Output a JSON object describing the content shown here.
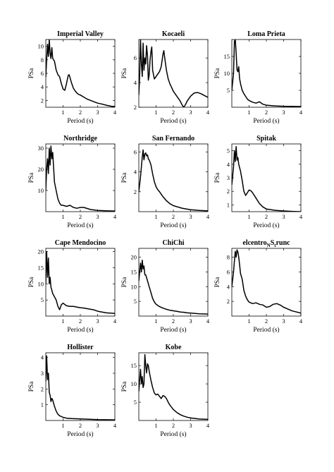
{
  "chart_data": [
    {
      "type": "line",
      "title": "Imperial Valley",
      "xlabel": "Period (s)",
      "ylabel": "PSa",
      "xlim": [
        0,
        4
      ],
      "ylim": [
        1,
        11
      ],
      "xticks": [
        1,
        2,
        3,
        4
      ],
      "yticks": [
        2,
        4,
        6,
        8,
        10
      ],
      "series": [
        {
          "x": [
            0,
            0.05,
            0.1,
            0.15,
            0.2,
            0.25,
            0.3,
            0.35,
            0.4,
            0.5,
            0.6,
            0.7,
            0.8,
            0.9,
            1.0,
            1.1,
            1.2,
            1.3,
            1.35,
            1.4,
            1.5,
            1.6,
            1.7,
            1.8,
            1.9,
            2.0,
            2.2,
            2.4,
            2.6,
            2.8,
            3.0,
            3.2,
            3.5,
            3.8,
            4.0
          ],
          "y": [
            5.5,
            8,
            10.3,
            8.5,
            11,
            9,
            8.2,
            9.8,
            8.2,
            7.8,
            6.5,
            5.8,
            5.5,
            4.5,
            3.7,
            3.5,
            4.5,
            5.7,
            5.8,
            5.4,
            4.5,
            3.8,
            3.4,
            3.1,
            2.9,
            2.8,
            2.5,
            2.2,
            2.0,
            1.8,
            1.6,
            1.5,
            1.3,
            1.15,
            1.1
          ]
        }
      ]
    },
    {
      "type": "line",
      "title": "Kocaeli",
      "xlabel": "Period (s)",
      "ylabel": "PSa",
      "xlim": [
        0,
        4
      ],
      "ylim": [
        2,
        7.5
      ],
      "xticks": [
        1,
        2,
        3,
        4
      ],
      "yticks": [
        2,
        4,
        6
      ],
      "series": [
        {
          "x": [
            0,
            0.05,
            0.1,
            0.15,
            0.2,
            0.25,
            0.3,
            0.35,
            0.4,
            0.45,
            0.5,
            0.55,
            0.6,
            0.65,
            0.7,
            0.75,
            0.8,
            0.9,
            1.0,
            1.1,
            1.2,
            1.3,
            1.4,
            1.45,
            1.5,
            1.6,
            1.7,
            1.8,
            1.9,
            2.0,
            2.1,
            2.2,
            2.3,
            2.4,
            2.5,
            2.6,
            2.7,
            2.8,
            3.0,
            3.2,
            3.4,
            3.6,
            3.8,
            4.0
          ],
          "y": [
            3,
            4.5,
            7.5,
            5.5,
            4.5,
            7.2,
            5.0,
            6.0,
            5.5,
            7.0,
            6.2,
            4.2,
            4.6,
            5.8,
            6.5,
            6.9,
            5.0,
            4.3,
            4.5,
            4.7,
            4.9,
            5.3,
            6.3,
            6.6,
            6.0,
            5.0,
            4.3,
            3.9,
            3.6,
            3.3,
            3.1,
            2.9,
            2.7,
            2.5,
            2.2,
            2.0,
            2.2,
            2.5,
            2.9,
            3.15,
            3.2,
            3.1,
            2.95,
            2.8
          ]
        }
      ]
    },
    {
      "type": "line",
      "title": "Loma Prieta",
      "xlabel": "Period (s)",
      "ylabel": "PSa",
      "xlim": [
        0,
        4
      ],
      "ylim": [
        0,
        20
      ],
      "xticks": [
        1,
        2,
        3,
        4
      ],
      "yticks": [
        5,
        10,
        15
      ],
      "series": [
        {
          "x": [
            0,
            0.1,
            0.15,
            0.2,
            0.25,
            0.3,
            0.35,
            0.4,
            0.45,
            0.5,
            0.6,
            0.7,
            0.8,
            0.9,
            1.0,
            1.2,
            1.4,
            1.6,
            1.8,
            2.0,
            2.5,
            3.0,
            3.5,
            4.0
          ],
          "y": [
            5,
            10,
            19.5,
            20,
            16,
            11,
            10.5,
            12,
            8.5,
            7,
            5,
            4,
            3.2,
            2.4,
            2.0,
            1.5,
            1.2,
            1.6,
            0.9,
            0.6,
            0.4,
            0.3,
            0.25,
            0.2
          ]
        }
      ]
    },
    {
      "type": "line",
      "title": "Northridge",
      "xlabel": "Period (s)",
      "ylabel": "PSa",
      "xlim": [
        0,
        4
      ],
      "ylim": [
        0,
        32
      ],
      "xticks": [
        1,
        2,
        3,
        4
      ],
      "yticks": [
        10,
        20,
        30
      ],
      "series": [
        {
          "x": [
            0,
            0.05,
            0.1,
            0.15,
            0.2,
            0.25,
            0.3,
            0.35,
            0.4,
            0.5,
            0.6,
            0.7,
            0.8,
            0.9,
            1.0,
            1.2,
            1.4,
            1.6,
            1.8,
            2.0,
            2.2,
            2.4,
            2.6,
            2.8,
            3.0,
            3.5,
            4.0
          ],
          "y": [
            10,
            20,
            25,
            18,
            30,
            22,
            31,
            25,
            28,
            14,
            10,
            6,
            4,
            3,
            3,
            2.5,
            3,
            2,
            1.6,
            2,
            2,
            1.5,
            1,
            0.8,
            0.6,
            0.4,
            0.3
          ]
        }
      ]
    },
    {
      "type": "line",
      "title": "San Fernando",
      "xlabel": "Period (s)",
      "ylabel": "PSa",
      "xlim": [
        0,
        4
      ],
      "ylim": [
        0,
        6.8
      ],
      "xticks": [
        1,
        2,
        3,
        4
      ],
      "yticks": [
        2,
        4,
        6
      ],
      "series": [
        {
          "x": [
            0,
            0.1,
            0.2,
            0.25,
            0.3,
            0.35,
            0.4,
            0.45,
            0.5,
            0.55,
            0.6,
            0.7,
            0.8,
            0.9,
            1.0,
            1.1,
            1.2,
            1.4,
            1.6,
            1.8,
            2.0,
            2.5,
            3.0,
            3.5,
            4.0
          ],
          "y": [
            2,
            3.5,
            5.5,
            6.2,
            5.2,
            5.8,
            5.9,
            5.6,
            5.7,
            5.3,
            5.2,
            4.7,
            3.8,
            3.0,
            2.5,
            2.2,
            2.0,
            1.5,
            1.1,
            0.8,
            0.6,
            0.35,
            0.2,
            0.12,
            0.08
          ]
        }
      ]
    },
    {
      "type": "line",
      "title": "Spitak",
      "xlabel": "Period (s)",
      "ylabel": "PSa",
      "xlim": [
        0,
        4
      ],
      "ylim": [
        0.5,
        5.5
      ],
      "xticks": [
        1,
        2,
        3,
        4
      ],
      "yticks": [
        1,
        2,
        3,
        4,
        5
      ],
      "series": [
        {
          "x": [
            0,
            0.1,
            0.15,
            0.2,
            0.25,
            0.3,
            0.35,
            0.4,
            0.5,
            0.6,
            0.7,
            0.8,
            0.9,
            1.0,
            1.1,
            1.2,
            1.4,
            1.6,
            1.8,
            2.0,
            2.5,
            3.0,
            3.5,
            4.0
          ],
          "y": [
            2.5,
            3.8,
            5.0,
            4.2,
            5.3,
            4.3,
            4.5,
            4.0,
            3.5,
            2.8,
            2.0,
            1.7,
            1.9,
            2.1,
            2.05,
            1.9,
            1.5,
            1.1,
            0.85,
            0.7,
            0.6,
            0.55,
            0.52,
            0.5
          ]
        }
      ]
    },
    {
      "type": "line",
      "title": "Cape Mendocino",
      "xlabel": "Period (s)",
      "ylabel": "PSa",
      "xlim": [
        0,
        4
      ],
      "ylim": [
        0,
        21
      ],
      "xticks": [
        1,
        2,
        3,
        4
      ],
      "yticks": [
        5,
        10,
        15,
        20
      ],
      "series": [
        {
          "x": [
            0,
            0.05,
            0.1,
            0.15,
            0.2,
            0.25,
            0.3,
            0.35,
            0.4,
            0.5,
            0.6,
            0.7,
            0.8,
            0.9,
            1.0,
            1.2,
            1.4,
            1.6,
            1.8,
            2.0,
            2.2,
            2.4,
            2.6,
            2.8,
            3.0,
            3.5,
            4.0
          ],
          "y": [
            10,
            20,
            12,
            18,
            10,
            12,
            9,
            8,
            7,
            6,
            5,
            3,
            2,
            3.5,
            4,
            3.2,
            3,
            3,
            2.8,
            2.6,
            2.5,
            2.3,
            2.1,
            1.9,
            1.5,
            1.0,
            0.8
          ]
        }
      ]
    },
    {
      "type": "line",
      "title": "ChiChi",
      "xlabel": "Period (s)",
      "ylabel": "PSa",
      "xlim": [
        0,
        4
      ],
      "ylim": [
        0,
        23
      ],
      "xticks": [
        1,
        2,
        3,
        4
      ],
      "yticks": [
        5,
        10,
        15,
        20
      ],
      "series": [
        {
          "x": [
            0,
            0.1,
            0.15,
            0.2,
            0.25,
            0.3,
            0.35,
            0.4,
            0.5,
            0.6,
            0.7,
            0.8,
            0.9,
            1.0,
            1.2,
            1.4,
            1.6,
            1.8,
            2.0,
            2.2,
            2.4,
            2.6,
            2.8,
            3.0,
            3.5,
            4.0
          ],
          "y": [
            12,
            18,
            15,
            19,
            16,
            17,
            14,
            14,
            12,
            10,
            8,
            6,
            4.8,
            4,
            3.2,
            2.7,
            2.3,
            2.0,
            1.8,
            1.6,
            1.4,
            1.3,
            1.1,
            1.0,
            0.8,
            0.7
          ]
        }
      ]
    },
    {
      "type": "line",
      "title": "elcentro",
      "title_sub": "N",
      "title_mid": "S",
      "title_sub2": "t",
      "title_end": "runc",
      "xlabel": "Period (s)",
      "ylabel": "PSa",
      "xlim": [
        0,
        4
      ],
      "ylim": [
        0,
        9.2
      ],
      "xticks": [
        1,
        2,
        3,
        4
      ],
      "yticks": [
        2,
        4,
        6,
        8
      ],
      "series": [
        {
          "x": [
            0,
            0.1,
            0.15,
            0.2,
            0.25,
            0.3,
            0.35,
            0.4,
            0.45,
            0.5,
            0.6,
            0.7,
            0.8,
            0.9,
            1.0,
            1.2,
            1.4,
            1.6,
            1.8,
            2.0,
            2.2,
            2.4,
            2.6,
            2.8,
            3.0,
            3.2,
            3.5,
            4.0
          ],
          "y": [
            4,
            6,
            7.5,
            8.8,
            8.0,
            9.0,
            8.7,
            8.0,
            7.0,
            5.8,
            5.0,
            3.5,
            2.7,
            2.2,
            1.9,
            1.7,
            1.8,
            1.6,
            1.5,
            1.2,
            1.3,
            1.6,
            1.7,
            1.5,
            1.2,
            1.0,
            0.7,
            0.4
          ]
        }
      ]
    },
    {
      "type": "line",
      "title": "Hollister",
      "xlabel": "Period (s)",
      "ylabel": "PSa",
      "xlim": [
        0,
        4
      ],
      "ylim": [
        0,
        4.3
      ],
      "xticks": [
        1,
        2,
        3,
        4
      ],
      "yticks": [
        1,
        2,
        3,
        4
      ],
      "series": [
        {
          "x": [
            0,
            0.05,
            0.1,
            0.15,
            0.2,
            0.25,
            0.3,
            0.35,
            0.4,
            0.5,
            0.6,
            0.7,
            0.8,
            1.0,
            1.2,
            1.5,
            2.0,
            2.5,
            3.0,
            3.5,
            4.0
          ],
          "y": [
            2.5,
            4.1,
            2.6,
            3.0,
            1.8,
            1.6,
            1.2,
            1.4,
            1.3,
            0.9,
            0.6,
            0.4,
            0.3,
            0.2,
            0.15,
            0.12,
            0.1,
            0.08,
            0.06,
            0.05,
            0.04
          ]
        }
      ]
    },
    {
      "type": "line",
      "title": "Kobe",
      "xlabel": "Period (s)",
      "ylabel": "PSa",
      "xlim": [
        0,
        4
      ],
      "ylim": [
        0,
        18.5
      ],
      "xticks": [
        1,
        2,
        3,
        4
      ],
      "yticks": [
        5,
        10,
        15
      ],
      "series": [
        {
          "x": [
            0,
            0.1,
            0.15,
            0.2,
            0.25,
            0.3,
            0.35,
            0.4,
            0.45,
            0.5,
            0.55,
            0.6,
            0.7,
            0.8,
            0.9,
            1.0,
            1.1,
            1.2,
            1.3,
            1.4,
            1.5,
            1.6,
            1.7,
            1.8,
            1.9,
            2.0,
            2.2,
            2.4,
            2.6,
            2.8,
            3.0,
            3.5,
            4.0
          ],
          "y": [
            8,
            14,
            10,
            12,
            9,
            10,
            18,
            15,
            13,
            15.5,
            15,
            13.5,
            11,
            9,
            7.5,
            7,
            7.2,
            6.6,
            6.0,
            6.8,
            6.6,
            6.0,
            5.0,
            4.2,
            3.6,
            3.0,
            2.2,
            1.6,
            1.2,
            0.9,
            0.7,
            0.4,
            0.3
          ]
        }
      ]
    }
  ]
}
